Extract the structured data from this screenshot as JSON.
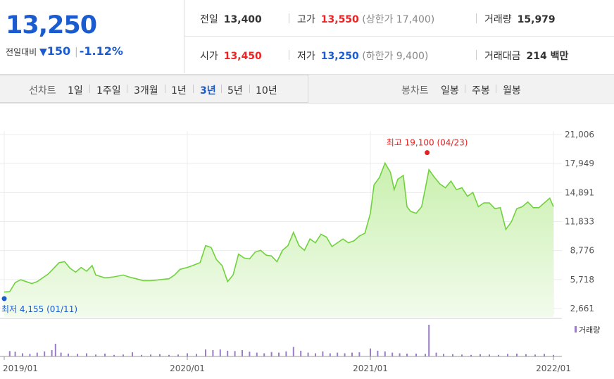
{
  "summary": {
    "price": "13,250",
    "change_label": "전일대비",
    "change_arrow": "▼",
    "change_value": "150",
    "change_sep": "|",
    "change_rate": "-1.12%"
  },
  "quotes": {
    "prev_label": "전일",
    "prev_value": "13,400",
    "high_label": "고가",
    "high_value": "13,550",
    "upper_limit": "(상한가 17,400)",
    "volume_label": "거래량",
    "volume_value": "15,979",
    "open_label": "시가",
    "open_value": "13,450",
    "low_label": "저가",
    "low_value": "13,250",
    "lower_limit": "(하한가 9,400)",
    "amount_label": "거래대금",
    "amount_value": "214 백만"
  },
  "toolbar": {
    "line_chart_label": "선차트",
    "periods": [
      "1일",
      "1주일",
      "3개월",
      "1년",
      "3년",
      "5년",
      "10년"
    ],
    "active_period": "3년",
    "candle_chart_label": "봉차트",
    "candles": [
      "일봉",
      "주봉",
      "월봉"
    ]
  },
  "colors": {
    "up": "#e22222",
    "down": "#1a5bcf",
    "line": "#6fd23c",
    "area_top": "#c9f0ae",
    "area_bottom": "#f2fbec",
    "volume": "#9a7cc8"
  },
  "chart_data": {
    "type": "area",
    "y_ticks": [
      "21,006",
      "17,949",
      "14,891",
      "11,833",
      "8,776",
      "5,718",
      "2,661"
    ],
    "ylim": [
      2661,
      21006
    ],
    "x_ticks": [
      "2019/01",
      "2020/01",
      "2021/01",
      "2022/01"
    ],
    "xlim": [
      2019.0,
      2022.0
    ],
    "high_label": "최고 19,100 (04/23)",
    "high_point": {
      "x": 2021.31,
      "y": 19100
    },
    "low_label": "최저 4,155 (01/11)",
    "low_point": {
      "x": 2019.03,
      "y": 4155
    },
    "volume_legend": "거래량",
    "price_series": [
      [
        2019.0,
        4400
      ],
      [
        2019.03,
        4450
      ],
      [
        2019.06,
        5400
      ],
      [
        2019.09,
        5700
      ],
      [
        2019.12,
        5500
      ],
      [
        2019.15,
        5300
      ],
      [
        2019.18,
        5500
      ],
      [
        2019.21,
        5900
      ],
      [
        2019.24,
        6300
      ],
      [
        2019.27,
        6900
      ],
      [
        2019.3,
        7500
      ],
      [
        2019.33,
        7600
      ],
      [
        2019.36,
        6900
      ],
      [
        2019.39,
        6500
      ],
      [
        2019.42,
        7000
      ],
      [
        2019.45,
        6600
      ],
      [
        2019.48,
        7200
      ],
      [
        2019.5,
        6200
      ],
      [
        2019.55,
        5900
      ],
      [
        2019.6,
        6000
      ],
      [
        2019.65,
        6200
      ],
      [
        2019.68,
        6000
      ],
      [
        2019.72,
        5800
      ],
      [
        2019.76,
        5600
      ],
      [
        2019.8,
        5600
      ],
      [
        2019.85,
        5700
      ],
      [
        2019.9,
        5800
      ],
      [
        2019.93,
        6200
      ],
      [
        2019.96,
        6800
      ],
      [
        2020.0,
        7000
      ],
      [
        2020.03,
        7200
      ],
      [
        2020.07,
        7500
      ],
      [
        2020.1,
        9300
      ],
      [
        2020.13,
        9100
      ],
      [
        2020.16,
        7800
      ],
      [
        2020.19,
        7200
      ],
      [
        2020.22,
        5500
      ],
      [
        2020.25,
        6200
      ],
      [
        2020.28,
        8400
      ],
      [
        2020.31,
        8000
      ],
      [
        2020.34,
        7900
      ],
      [
        2020.37,
        8600
      ],
      [
        2020.4,
        8800
      ],
      [
        2020.43,
        8300
      ],
      [
        2020.46,
        8200
      ],
      [
        2020.49,
        7600
      ],
      [
        2020.52,
        8800
      ],
      [
        2020.55,
        9300
      ],
      [
        2020.58,
        10700
      ],
      [
        2020.61,
        9300
      ],
      [
        2020.64,
        8800
      ],
      [
        2020.67,
        10000
      ],
      [
        2020.7,
        9600
      ],
      [
        2020.73,
        10500
      ],
      [
        2020.76,
        10200
      ],
      [
        2020.79,
        9200
      ],
      [
        2020.82,
        9600
      ],
      [
        2020.85,
        10000
      ],
      [
        2020.88,
        9600
      ],
      [
        2020.91,
        9800
      ],
      [
        2020.94,
        10300
      ],
      [
        2020.97,
        10600
      ],
      [
        2021.0,
        12700
      ],
      [
        2021.02,
        15700
      ],
      [
        2021.05,
        16500
      ],
      [
        2021.08,
        18000
      ],
      [
        2021.11,
        17000
      ],
      [
        2021.13,
        15200
      ],
      [
        2021.15,
        16300
      ],
      [
        2021.18,
        16700
      ],
      [
        2021.2,
        13400
      ],
      [
        2021.22,
        12900
      ],
      [
        2021.25,
        12700
      ],
      [
        2021.28,
        13400
      ],
      [
        2021.3,
        15300
      ],
      [
        2021.32,
        17300
      ],
      [
        2021.35,
        16500
      ],
      [
        2021.38,
        15800
      ],
      [
        2021.41,
        15400
      ],
      [
        2021.44,
        16100
      ],
      [
        2021.47,
        15200
      ],
      [
        2021.5,
        15400
      ],
      [
        2021.53,
        14500
      ],
      [
        2021.56,
        14900
      ],
      [
        2021.59,
        13400
      ],
      [
        2021.62,
        13800
      ],
      [
        2021.65,
        13800
      ],
      [
        2021.68,
        13200
      ],
      [
        2021.71,
        13300
      ],
      [
        2021.74,
        11000
      ],
      [
        2021.77,
        11800
      ],
      [
        2021.8,
        13200
      ],
      [
        2021.83,
        13400
      ],
      [
        2021.86,
        13900
      ],
      [
        2021.89,
        13300
      ],
      [
        2021.92,
        13300
      ],
      [
        2021.95,
        13800
      ],
      [
        2021.98,
        14300
      ],
      [
        2022.0,
        13400
      ]
    ],
    "volume_series": [
      [
        2019.03,
        0.17
      ],
      [
        2019.06,
        0.15
      ],
      [
        2019.1,
        0.1
      ],
      [
        2019.14,
        0.08
      ],
      [
        2019.18,
        0.12
      ],
      [
        2019.22,
        0.16
      ],
      [
        2019.26,
        0.2
      ],
      [
        2019.28,
        0.4
      ],
      [
        2019.31,
        0.12
      ],
      [
        2019.35,
        0.09
      ],
      [
        2019.4,
        0.08
      ],
      [
        2019.45,
        0.1
      ],
      [
        2019.5,
        0.06
      ],
      [
        2019.55,
        0.09
      ],
      [
        2019.6,
        0.05
      ],
      [
        2019.65,
        0.06
      ],
      [
        2019.7,
        0.13
      ],
      [
        2019.75,
        0.05
      ],
      [
        2019.8,
        0.06
      ],
      [
        2019.85,
        0.07
      ],
      [
        2019.9,
        0.05
      ],
      [
        2019.95,
        0.06
      ],
      [
        2020.0,
        0.1
      ],
      [
        2020.05,
        0.08
      ],
      [
        2020.1,
        0.22
      ],
      [
        2020.14,
        0.2
      ],
      [
        2020.18,
        0.22
      ],
      [
        2020.22,
        0.18
      ],
      [
        2020.26,
        0.17
      ],
      [
        2020.3,
        0.2
      ],
      [
        2020.34,
        0.15
      ],
      [
        2020.38,
        0.12
      ],
      [
        2020.42,
        0.1
      ],
      [
        2020.46,
        0.14
      ],
      [
        2020.5,
        0.12
      ],
      [
        2020.54,
        0.16
      ],
      [
        2020.58,
        0.3
      ],
      [
        2020.62,
        0.18
      ],
      [
        2020.66,
        0.12
      ],
      [
        2020.7,
        0.1
      ],
      [
        2020.74,
        0.16
      ],
      [
        2020.78,
        0.1
      ],
      [
        2020.82,
        0.12
      ],
      [
        2020.86,
        0.1
      ],
      [
        2020.9,
        0.12
      ],
      [
        2020.94,
        0.13
      ],
      [
        2021.0,
        0.25
      ],
      [
        2021.04,
        0.18
      ],
      [
        2021.08,
        0.16
      ],
      [
        2021.12,
        0.12
      ],
      [
        2021.16,
        0.1
      ],
      [
        2021.2,
        0.09
      ],
      [
        2021.25,
        0.09
      ],
      [
        2021.3,
        0.08
      ],
      [
        2021.32,
        1.0
      ],
      [
        2021.36,
        0.12
      ],
      [
        2021.4,
        0.08
      ],
      [
        2021.45,
        0.07
      ],
      [
        2021.5,
        0.06
      ],
      [
        2021.55,
        0.05
      ],
      [
        2021.6,
        0.07
      ],
      [
        2021.65,
        0.06
      ],
      [
        2021.7,
        0.05
      ],
      [
        2021.75,
        0.08
      ],
      [
        2021.8,
        0.09
      ],
      [
        2021.85,
        0.07
      ],
      [
        2021.9,
        0.06
      ],
      [
        2021.95,
        0.08
      ],
      [
        2022.0,
        0.05
      ]
    ]
  }
}
